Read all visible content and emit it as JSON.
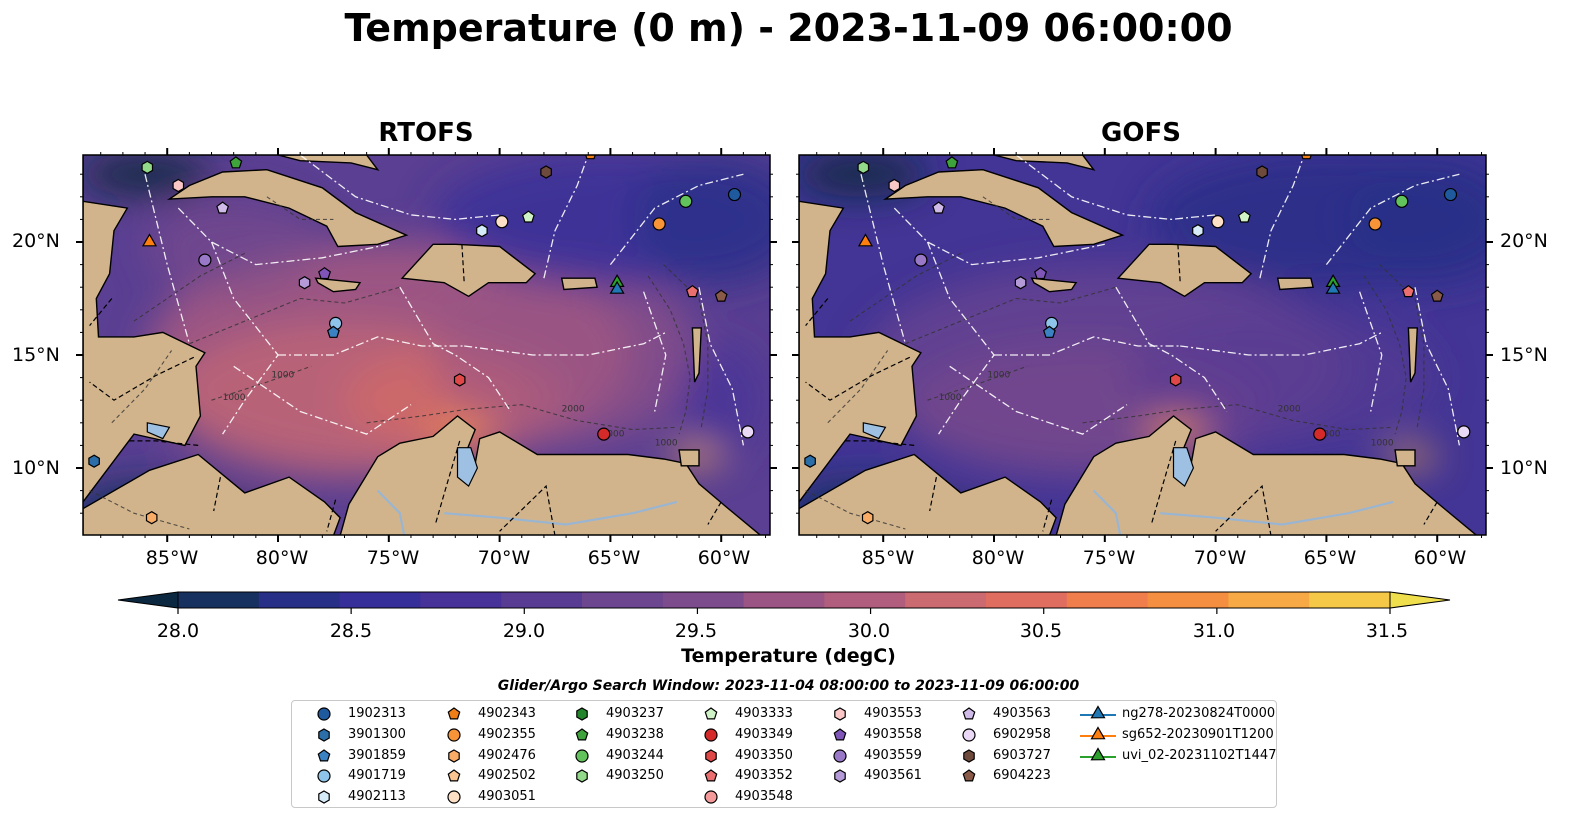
{
  "title": "Temperature (0 m) - 2023-11-09 06:00:00",
  "panels": [
    {
      "title": "RTOFS",
      "palette": "rtofs"
    },
    {
      "title": "GOFS",
      "palette": "gofs"
    }
  ],
  "lat_labels": [
    "20°N",
    "15°N",
    "10°N"
  ],
  "lon_labels": [
    "85°W",
    "80°W",
    "75°W",
    "70°W",
    "65°W",
    "60°W"
  ],
  "contour_labels": [
    "1000",
    "1000",
    "2000",
    "2000",
    "1000"
  ],
  "colorbar": {
    "ticks": [
      "28.0",
      "28.5",
      "29.0",
      "29.5",
      "30.0",
      "30.5",
      "31.0",
      "31.5"
    ],
    "label": "Temperature (degC)",
    "colors": [
      "#0b2840",
      "#16305f",
      "#282f87",
      "#372f99",
      "#463298",
      "#583b93",
      "#6d4690",
      "#7d4c8c",
      "#9a5585",
      "#b15d7e",
      "#cc6a72",
      "#e06e60",
      "#f07d4c",
      "#f48f42",
      "#f6a944",
      "#f6c847",
      "#f0df4d"
    ]
  },
  "search_window": "Glider/Argo Search Window: 2023-11-04 08:00:00 to 2023-11-09 06:00:00",
  "legend": [
    {
      "label": "1902313",
      "marker": "circle",
      "color": "#1f5a9e"
    },
    {
      "label": "3901300",
      "marker": "hexagon",
      "color": "#2c6ea8"
    },
    {
      "label": "3901859",
      "marker": "pentagon",
      "color": "#3a82c2"
    },
    {
      "label": "4901719",
      "marker": "circle",
      "color": "#8ec3ea"
    },
    {
      "label": "4902113",
      "marker": "hexagon",
      "color": "#d6ebf8"
    },
    {
      "label": "4902343",
      "marker": "pentagon",
      "color": "#f07e16"
    },
    {
      "label": "4902355",
      "marker": "circle",
      "color": "#f79437"
    },
    {
      "label": "4902476",
      "marker": "hexagon",
      "color": "#f9ac66"
    },
    {
      "label": "4902502",
      "marker": "pentagon",
      "color": "#fbc592"
    },
    {
      "label": "4903051",
      "marker": "circle",
      "color": "#fde0c5"
    },
    {
      "label": "4903237",
      "marker": "hexagon",
      "color": "#22852a"
    },
    {
      "label": "4903238",
      "marker": "pentagon",
      "color": "#3fa33c"
    },
    {
      "label": "4903244",
      "marker": "circle",
      "color": "#62c25c"
    },
    {
      "label": "4903250",
      "marker": "hexagon",
      "color": "#93d98a"
    },
    {
      "label": "4903333",
      "marker": "pentagon",
      "color": "#cff3c6"
    },
    {
      "label": "4903349",
      "marker": "circle",
      "color": "#d42a2a"
    },
    {
      "label": "4903350",
      "marker": "hexagon",
      "color": "#e04848"
    },
    {
      "label": "4903352",
      "marker": "pentagon",
      "color": "#ec6f6f"
    },
    {
      "label": "4903548",
      "marker": "circle",
      "color": "#f59a9a"
    },
    {
      "label": "4903553",
      "marker": "hexagon",
      "color": "#fac6c6"
    },
    {
      "label": "4903558",
      "marker": "pentagon",
      "color": "#7f56b8"
    },
    {
      "label": "4903559",
      "marker": "circle",
      "color": "#9a78c8"
    },
    {
      "label": "4903561",
      "marker": "hexagon",
      "color": "#b59ad8"
    },
    {
      "label": "4903563",
      "marker": "pentagon",
      "color": "#cfbae8"
    },
    {
      "label": "6902958",
      "marker": "circle",
      "color": "#ead9f6"
    },
    {
      "label": "6903727",
      "marker": "hexagon",
      "color": "#6d4a3b"
    },
    {
      "label": "6904223",
      "marker": "pentagon",
      "color": "#8a5a48"
    },
    {
      "label": "ng278-20230824T0000",
      "marker": "triangle",
      "color": "#1f77b4"
    },
    {
      "label": "sg652-20230901T1200",
      "marker": "triangle",
      "color": "#ff7f0e"
    },
    {
      "label": "uvi_02-20231102T1447",
      "marker": "triangle",
      "color": "#2ca02c"
    }
  ],
  "map_markers": [
    {
      "lon": -85.9,
      "lat": 23.3,
      "marker": "hexagon",
      "color": "#93d98a"
    },
    {
      "lon": -81.9,
      "lat": 23.5,
      "marker": "pentagon",
      "color": "#3fa33c"
    },
    {
      "lon": -84.5,
      "lat": 22.5,
      "marker": "hexagon",
      "color": "#fac6c6"
    },
    {
      "lon": -82.5,
      "lat": 21.5,
      "marker": "pentagon",
      "color": "#cfbae8"
    },
    {
      "lon": -85.8,
      "lat": 20.0,
      "marker": "triangle",
      "color": "#ff7f0e"
    },
    {
      "lon": -83.3,
      "lat": 19.2,
      "marker": "circle",
      "color": "#9a78c8"
    },
    {
      "lon": -78.8,
      "lat": 18.2,
      "marker": "hexagon",
      "color": "#b59ad8"
    },
    {
      "lon": -77.9,
      "lat": 18.6,
      "marker": "pentagon",
      "color": "#7f56b8"
    },
    {
      "lon": -77.4,
      "lat": 16.4,
      "marker": "circle",
      "color": "#8ec3ea"
    },
    {
      "lon": -77.5,
      "lat": 16.0,
      "marker": "pentagon",
      "color": "#3a82c2"
    },
    {
      "lon": -69.9,
      "lat": 20.9,
      "marker": "circle",
      "color": "#fde0c5"
    },
    {
      "lon": -70.8,
      "lat": 20.5,
      "marker": "hexagon",
      "color": "#d6ebf8"
    },
    {
      "lon": -68.7,
      "lat": 21.1,
      "marker": "pentagon",
      "color": "#cff3c6"
    },
    {
      "lon": -67.9,
      "lat": 23.1,
      "marker": "hexagon",
      "color": "#6d4a3b"
    },
    {
      "lon": -65.9,
      "lat": 23.9,
      "marker": "pentagon",
      "color": "#f07e16"
    },
    {
      "lon": -62.8,
      "lat": 20.8,
      "marker": "circle",
      "color": "#f79437"
    },
    {
      "lon": -61.6,
      "lat": 21.8,
      "marker": "circle",
      "color": "#62c25c"
    },
    {
      "lon": -59.4,
      "lat": 22.1,
      "marker": "circle",
      "color": "#1f5a9e"
    },
    {
      "lon": -64.7,
      "lat": 18.2,
      "marker": "triangle",
      "color": "#2ca02c"
    },
    {
      "lon": -64.7,
      "lat": 17.9,
      "marker": "triangle",
      "color": "#1f77b4"
    },
    {
      "lon": -61.3,
      "lat": 17.8,
      "marker": "pentagon",
      "color": "#ec6f6f"
    },
    {
      "lon": -60.0,
      "lat": 17.6,
      "marker": "pentagon",
      "color": "#8a5a48"
    },
    {
      "lon": -71.8,
      "lat": 13.9,
      "marker": "hexagon",
      "color": "#e04848"
    },
    {
      "lon": -65.3,
      "lat": 11.5,
      "marker": "circle",
      "color": "#d42a2a"
    },
    {
      "lon": -58.8,
      "lat": 11.6,
      "marker": "circle",
      "color": "#ead9f6"
    },
    {
      "lon": -88.3,
      "lat": 10.3,
      "marker": "hexagon",
      "color": "#2c6ea8"
    },
    {
      "lon": -85.7,
      "lat": 7.8,
      "marker": "hexagon",
      "color": "#f9ac66"
    }
  ]
}
